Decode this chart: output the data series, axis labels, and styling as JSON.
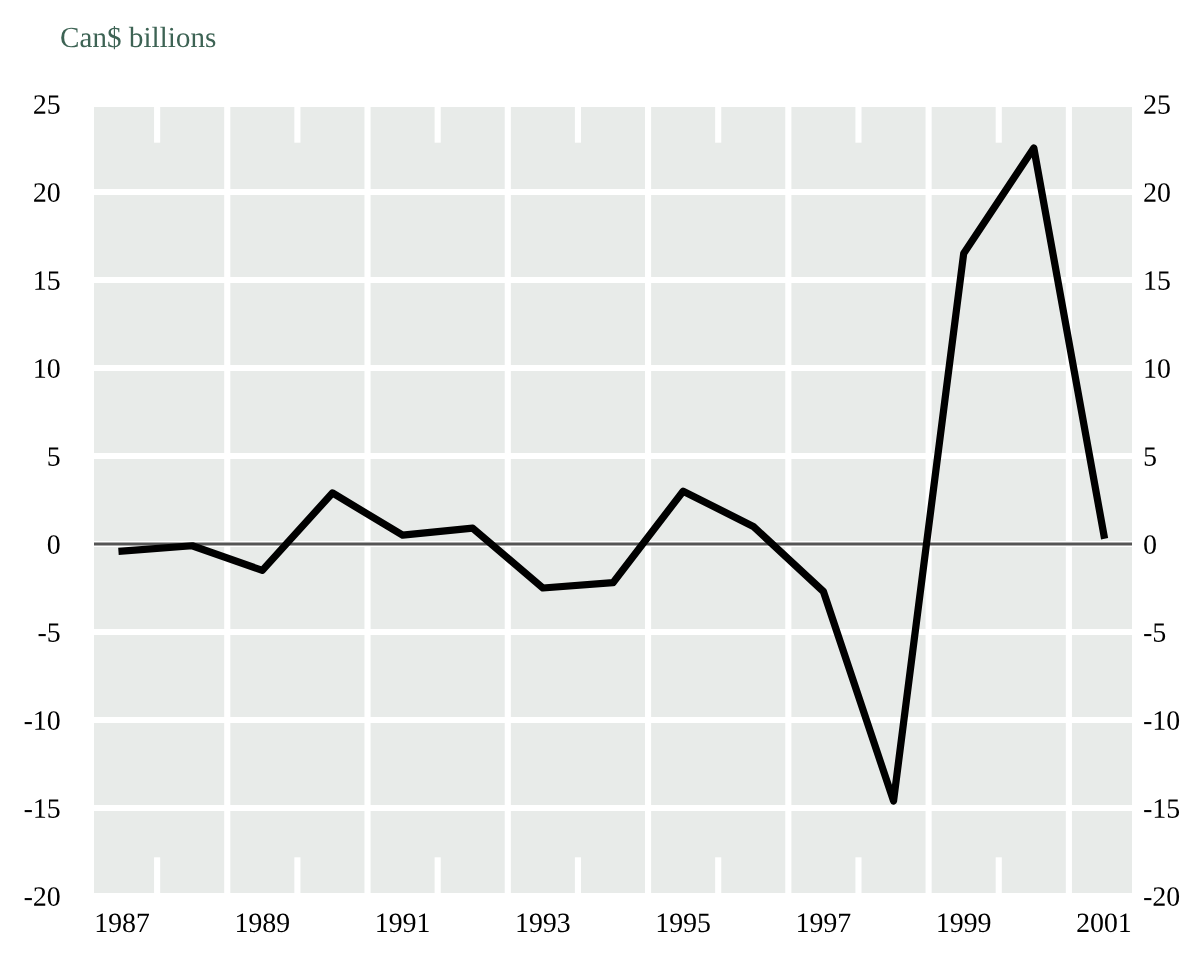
{
  "chart_data": {
    "type": "line",
    "ylabel": "Can$ billions",
    "x": [
      1987,
      1988,
      1989,
      1990,
      1991,
      1992,
      1993,
      1994,
      1995,
      1996,
      1997,
      1998,
      1999,
      2000,
      2001
    ],
    "series": [
      {
        "color": "#000000",
        "values": [
          -0.4,
          -0.1,
          -1.5,
          2.9,
          0.5,
          0.9,
          -2.5,
          -2.2,
          3.0,
          1.0,
          -2.7,
          -14.6,
          16.5,
          22.5,
          0.5
        ]
      }
    ],
    "xlim": [
      1986.6,
      2001.4
    ],
    "xticks": [
      1987,
      1989,
      1991,
      1993,
      1995,
      1997,
      1999,
      2001
    ],
    "ylim": [
      -20,
      25
    ],
    "yticks": [
      -20,
      -15,
      -10,
      -5,
      0,
      5,
      10,
      15,
      20,
      25
    ],
    "y2lim": [
      -20,
      25
    ],
    "y2ticks": [
      -20,
      -15,
      -10,
      -5,
      0,
      5,
      10,
      15,
      20,
      25
    ],
    "grid": "y",
    "legend": false,
    "marker": "none",
    "line_style": "solid",
    "ref_lines": [
      {
        "axis": "y",
        "value": 0,
        "color": "#555555"
      },
      {
        "axis": "x",
        "value": 1988.5,
        "color": "#ffffff"
      },
      {
        "axis": "x",
        "value": 1990.5,
        "color": "#ffffff"
      },
      {
        "axis": "x",
        "value": 1992.5,
        "color": "#ffffff"
      },
      {
        "axis": "x",
        "value": 1994.5,
        "color": "#ffffff"
      },
      {
        "axis": "x",
        "value": 1996.5,
        "color": "#ffffff"
      },
      {
        "axis": "x",
        "value": 1998.5,
        "color": "#ffffff"
      },
      {
        "axis": "x",
        "value": 2000.5,
        "color": "#ffffff"
      }
    ]
  }
}
